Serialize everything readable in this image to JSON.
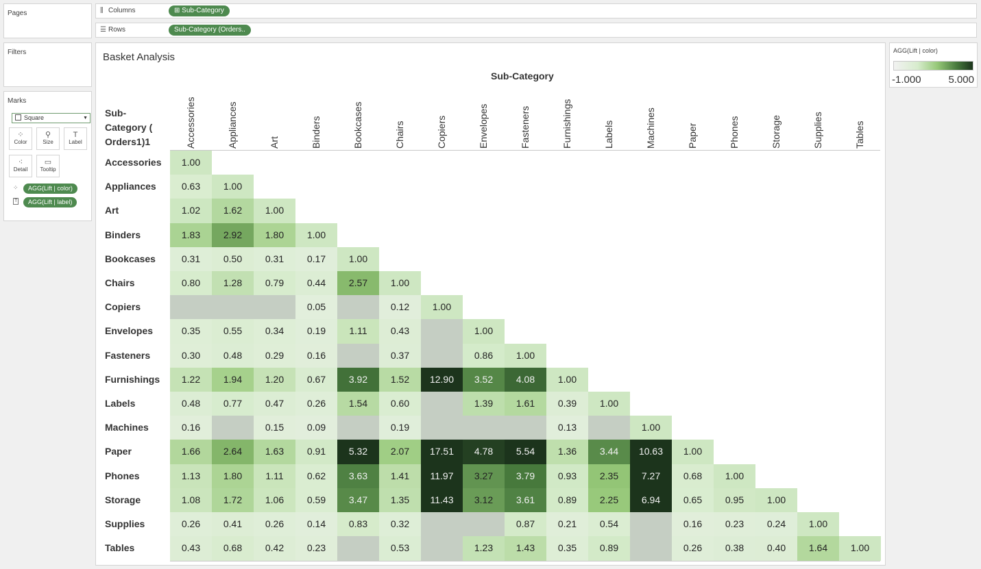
{
  "cards": {
    "pages": "Pages",
    "filters": "Filters",
    "marks": "Marks"
  },
  "shelves": {
    "columns": {
      "label": "Columns",
      "icon": "columns-icon",
      "pill": "⊞ Sub-Category"
    },
    "rows": {
      "label": "Rows",
      "icon": "rows-icon",
      "pill": "Sub-Category (Orders.."
    }
  },
  "marks": {
    "mark_type": "Square",
    "buttons": [
      {
        "label": "Color",
        "icon": "color-icon",
        "glyph": "⁘"
      },
      {
        "label": "Size",
        "icon": "size-icon",
        "glyph": "⚲"
      },
      {
        "label": "Label",
        "icon": "label-icon",
        "glyph": "T"
      },
      {
        "label": "Detail",
        "icon": "detail-icon",
        "glyph": "⁖"
      },
      {
        "label": "Tooltip",
        "icon": "tooltip-icon",
        "glyph": "▭"
      }
    ],
    "pills": [
      {
        "label": "AGG(Lift | color)",
        "icon": "color-icon",
        "glyph": "⁘"
      },
      {
        "label": "AGG(Lift | label)",
        "icon": "label-icon",
        "glyph": "T"
      }
    ]
  },
  "view": {
    "title": "Basket Analysis",
    "column_axis_title": "Sub-Category",
    "row_axis_title": "Sub-Category ( Orders1)1"
  },
  "legend": {
    "title": "AGG(Lift | color)",
    "min_label": "-1.000",
    "max_label": "5.000",
    "color_low": "#e8e8e8",
    "color_high": "#1f3d1f"
  },
  "chart_data": {
    "type": "heatmap",
    "title": "Basket Analysis",
    "xlabel": "Sub-Category",
    "ylabel": "Sub-Category ( Orders1)1",
    "categories": [
      "Accessories",
      "Appliances",
      "Art",
      "Binders",
      "Bookcases",
      "Chairs",
      "Copiers",
      "Envelopes",
      "Fasteners",
      "Furnishings",
      "Labels",
      "Machines",
      "Paper",
      "Phones",
      "Storage",
      "Supplies",
      "Tables"
    ],
    "color_range": [
      -1,
      5
    ],
    "missing_label": "",
    "values": [
      [
        1.0
      ],
      [
        0.63,
        1.0
      ],
      [
        1.02,
        1.62,
        1.0
      ],
      [
        1.83,
        2.92,
        1.8,
        1.0
      ],
      [
        0.31,
        0.5,
        0.31,
        0.17,
        1.0
      ],
      [
        0.8,
        1.28,
        0.79,
        0.44,
        2.57,
        1.0
      ],
      [
        null,
        null,
        null,
        0.05,
        null,
        0.12,
        1.0
      ],
      [
        0.35,
        0.55,
        0.34,
        0.19,
        1.11,
        0.43,
        null,
        1.0
      ],
      [
        0.3,
        0.48,
        0.29,
        0.16,
        null,
        0.37,
        null,
        0.86,
        1.0
      ],
      [
        1.22,
        1.94,
        1.2,
        0.67,
        3.92,
        1.52,
        12.9,
        3.52,
        4.08,
        1.0
      ],
      [
        0.48,
        0.77,
        0.47,
        0.26,
        1.54,
        0.6,
        null,
        1.39,
        1.61,
        0.39,
        1.0
      ],
      [
        0.16,
        null,
        0.15,
        0.09,
        null,
        0.19,
        null,
        null,
        null,
        0.13,
        null,
        1.0
      ],
      [
        1.66,
        2.64,
        1.63,
        0.91,
        5.32,
        2.07,
        17.51,
        4.78,
        5.54,
        1.36,
        3.44,
        10.63,
        1.0
      ],
      [
        1.13,
        1.8,
        1.11,
        0.62,
        3.63,
        1.41,
        11.97,
        3.27,
        3.79,
        0.93,
        2.35,
        7.27,
        0.68,
        1.0
      ],
      [
        1.08,
        1.72,
        1.06,
        0.59,
        3.47,
        1.35,
        11.43,
        3.12,
        3.61,
        0.89,
        2.25,
        6.94,
        0.65,
        0.95,
        1.0
      ],
      [
        0.26,
        0.41,
        0.26,
        0.14,
        0.83,
        0.32,
        null,
        null,
        0.87,
        0.21,
        0.54,
        null,
        0.16,
        0.23,
        0.24,
        1.0
      ],
      [
        0.43,
        0.68,
        0.42,
        0.23,
        null,
        0.53,
        null,
        1.23,
        1.43,
        0.35,
        0.89,
        null,
        0.26,
        0.38,
        0.4,
        1.64,
        1.0
      ]
    ]
  }
}
